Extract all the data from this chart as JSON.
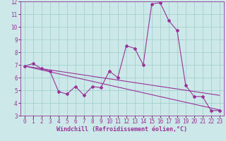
{
  "xlabel": "Windchill (Refroidissement éolien,°C)",
  "background_color": "#cce8e8",
  "line_color": "#993399",
  "grid_color": "#99cccc",
  "x_hours": [
    0,
    1,
    2,
    3,
    4,
    5,
    6,
    7,
    8,
    9,
    10,
    11,
    12,
    13,
    14,
    15,
    16,
    17,
    18,
    19,
    20,
    21,
    22,
    23
  ],
  "y_windchill": [
    6.9,
    7.1,
    6.7,
    6.5,
    4.9,
    4.7,
    5.3,
    4.6,
    5.3,
    5.2,
    6.5,
    6.0,
    8.5,
    8.3,
    7.0,
    11.8,
    11.9,
    10.5,
    9.7,
    5.4,
    4.5,
    4.5,
    3.4,
    3.4
  ],
  "y_line1": [
    6.9,
    6.8,
    6.7,
    6.6,
    6.5,
    6.4,
    6.3,
    6.2,
    6.1,
    6.0,
    5.9,
    5.8,
    5.7,
    5.6,
    5.5,
    5.4,
    5.3,
    5.2,
    5.1,
    5.0,
    4.9,
    4.8,
    4.7,
    4.6
  ],
  "y_line2": [
    6.9,
    6.75,
    6.6,
    6.45,
    6.3,
    6.15,
    6.0,
    5.85,
    5.7,
    5.55,
    5.4,
    5.25,
    5.1,
    4.95,
    4.8,
    4.65,
    4.5,
    4.35,
    4.2,
    4.05,
    3.9,
    3.75,
    3.6,
    3.45
  ],
  "ylim": [
    3,
    12
  ],
  "xlim": [
    -0.5,
    23.5
  ],
  "yticks": [
    3,
    4,
    5,
    6,
    7,
    8,
    9,
    10,
    11,
    12
  ],
  "xticks": [
    0,
    1,
    2,
    3,
    4,
    5,
    6,
    7,
    8,
    9,
    10,
    11,
    12,
    13,
    14,
    15,
    16,
    17,
    18,
    19,
    20,
    21,
    22,
    23
  ],
  "tick_fontsize": 5.5,
  "label_fontsize": 6.0,
  "marker": "D",
  "markersize": 2.0,
  "linewidth": 0.8
}
